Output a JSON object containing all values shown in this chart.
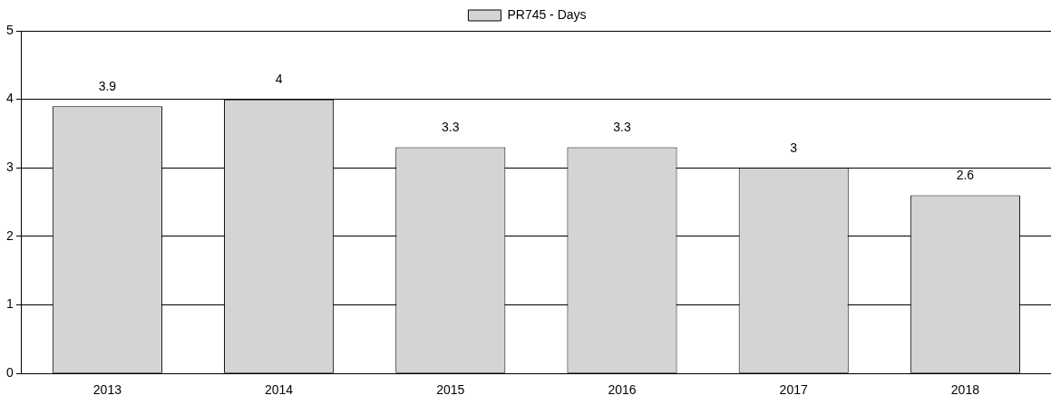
{
  "chart_data": {
    "type": "bar",
    "categories": [
      "2013",
      "2014",
      "2015",
      "2016",
      "2017",
      "2018"
    ],
    "series": [
      {
        "name": "PR745 - Days",
        "color": "#d4d4d4",
        "values": [
          3.9,
          4,
          3.3,
          3.3,
          3,
          2.6
        ]
      }
    ],
    "ylim": [
      0,
      5
    ],
    "yticks": [
      0,
      1,
      2,
      3,
      4,
      5
    ],
    "grid": "y",
    "legend": "top",
    "data_labels": true
  }
}
